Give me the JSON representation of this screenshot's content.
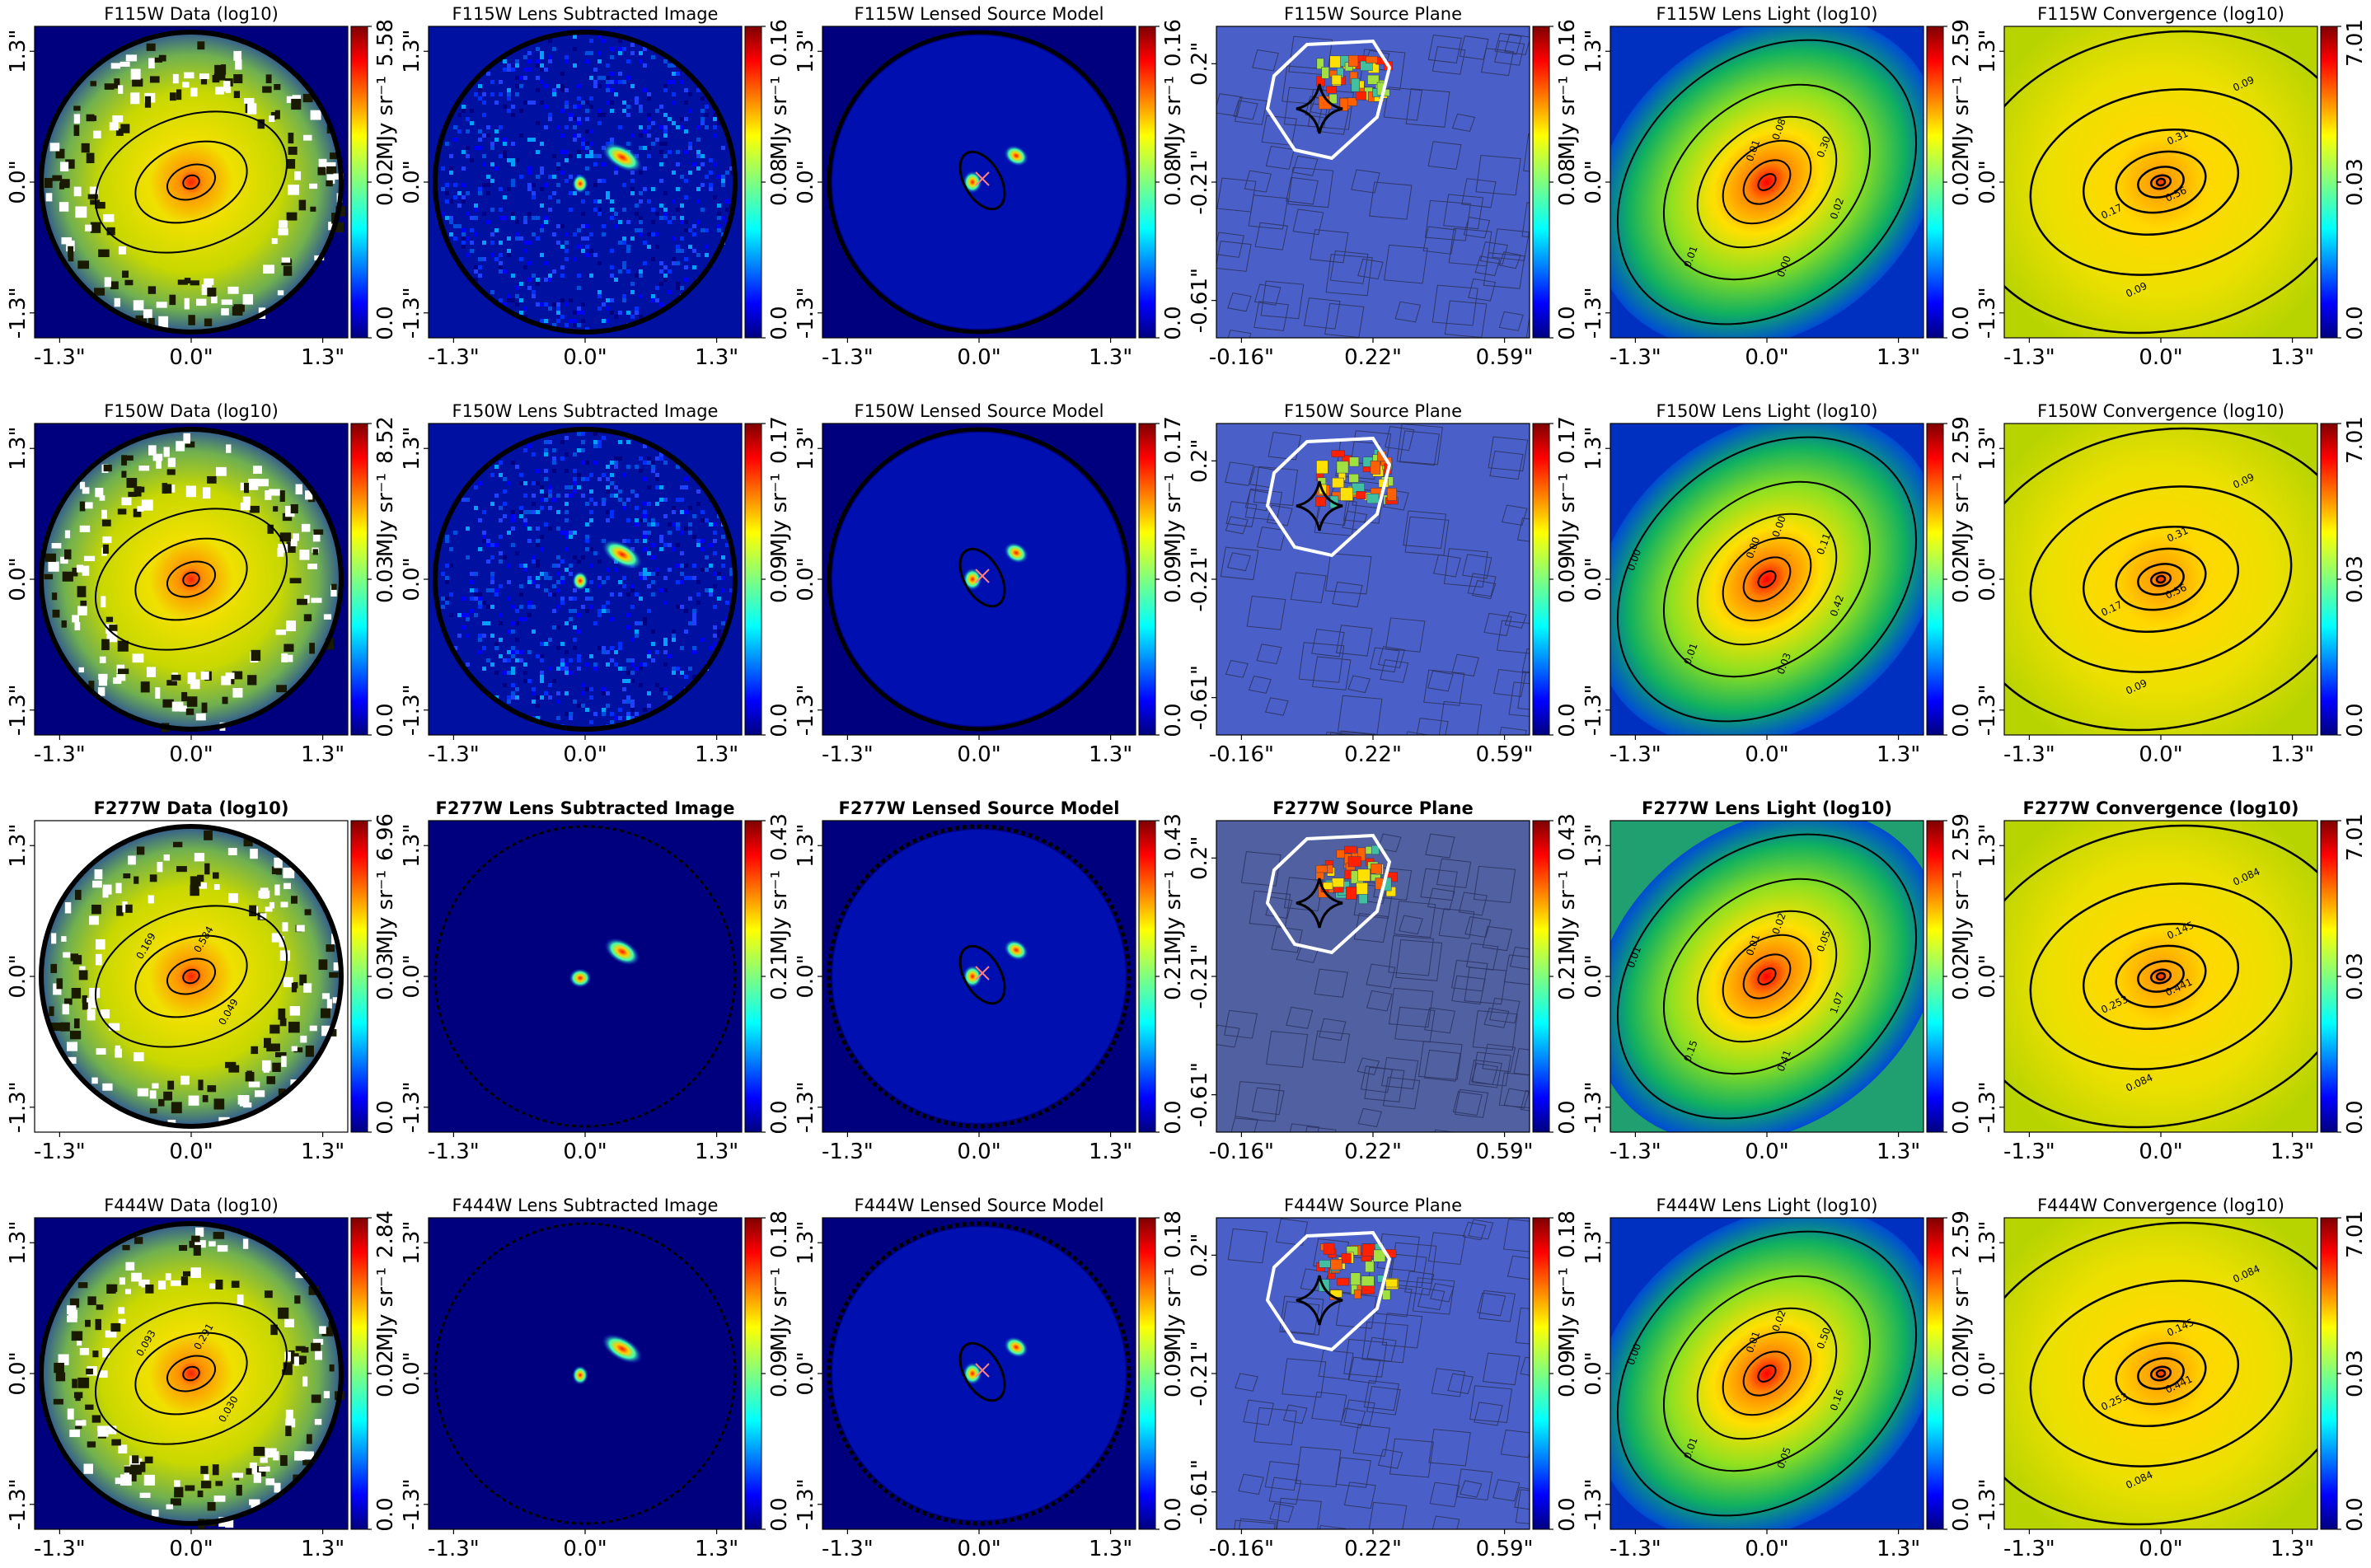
{
  "chart_data": {
    "type": "heatmap",
    "layout": "4 rows x 6 columns grid of lens-modelling image panels",
    "colormap": "jet",
    "columns": [
      "Data (log10)",
      "Lens Subtracted Image",
      "Lensed Source Model",
      "Source Plane",
      "Lens Light (log10)",
      "Convergence (log10)"
    ],
    "image_ticks": [
      "-1.3\"",
      "0.0\"",
      "1.3\""
    ],
    "source_ticks_x": [
      "-0.16\"",
      "0.22\"",
      "0.59\""
    ],
    "source_ticks_y": [
      "0.2\"",
      "-0.21\"",
      "-0.61\""
    ],
    "rows": [
      {
        "filter": "F115W",
        "bold": false,
        "panels": [
          {
            "kind": "data",
            "title": "F115W Data (log10)",
            "cbar_ticks": [
              "0.0",
              "0.02",
              "5.58"
            ],
            "cbar_label": "MJy sr⁻¹",
            "contour_labels": []
          },
          {
            "kind": "residual",
            "title": "F115W Lens Subtracted Image",
            "cbar_ticks": [
              "0.0",
              "0.08",
              "0.16"
            ],
            "cbar_label": "MJy sr⁻¹"
          },
          {
            "kind": "model",
            "title": "F115W Lensed Source Model",
            "cbar_ticks": [
              "0.0",
              "0.08",
              "0.16"
            ],
            "cbar_label": "MJy sr⁻¹"
          },
          {
            "kind": "source",
            "title": "F115W Source Plane",
            "cbar_ticks": [
              "0.0",
              "0.08",
              "0.16"
            ],
            "cbar_label": "MJy sr⁻¹"
          },
          {
            "kind": "light",
            "title": "F115W Lens Light (log10)",
            "cbar_ticks": [
              "0.0",
              "0.02",
              "2.59"
            ],
            "cbar_label": "MJy sr⁻¹",
            "contour_labels": [
              "0.01",
              "0.08",
              "0.30",
              "0.02",
              "0.00",
              "0.01"
            ]
          },
          {
            "kind": "convergence",
            "title": "F115W Convergence (log10)",
            "cbar_ticks": [
              "0.0",
              "0.03",
              "7.01"
            ],
            "cbar_label": "",
            "contour_labels": [
              "0.09",
              "0.31",
              "0.56",
              "0.17",
              "0.09"
            ]
          }
        ]
      },
      {
        "filter": "F150W",
        "bold": false,
        "panels": [
          {
            "kind": "data",
            "title": "F150W Data (log10)",
            "cbar_ticks": [
              "0.0",
              "0.03",
              "8.52"
            ],
            "cbar_label": "MJy sr⁻¹",
            "contour_labels": []
          },
          {
            "kind": "residual",
            "title": "F150W Lens Subtracted Image",
            "cbar_ticks": [
              "0.0",
              "0.09",
              "0.17"
            ],
            "cbar_label": "MJy sr⁻¹"
          },
          {
            "kind": "model",
            "title": "F150W Lensed Source Model",
            "cbar_ticks": [
              "0.0",
              "0.09",
              "0.17"
            ],
            "cbar_label": "MJy sr⁻¹"
          },
          {
            "kind": "source",
            "title": "F150W Source Plane",
            "cbar_ticks": [
              "0.0",
              "0.09",
              "0.17"
            ],
            "cbar_label": "MJy sr⁻¹"
          },
          {
            "kind": "light",
            "title": "F150W Lens Light (log10)",
            "cbar_ticks": [
              "0.0",
              "0.02",
              "2.59"
            ],
            "cbar_label": "MJy sr⁻¹",
            "contour_labels": [
              "0.00",
              "0.00",
              "0.11",
              "0.42",
              "0.03",
              "0.01",
              "0.00"
            ]
          },
          {
            "kind": "convergence",
            "title": "F150W Convergence (log10)",
            "cbar_ticks": [
              "0.0",
              "0.03",
              "7.01"
            ],
            "cbar_label": "",
            "contour_labels": [
              "0.09",
              "0.31",
              "0.56",
              "0.17",
              "0.09"
            ]
          }
        ]
      },
      {
        "filter": "F277W",
        "bold": true,
        "panels": [
          {
            "kind": "data",
            "title": "F277W Data (log10)",
            "cbar_ticks": [
              "0.0",
              "0.03",
              "6.96"
            ],
            "cbar_label": "MJy sr⁻¹",
            "contour_labels": [
              "0.169",
              "0.584",
              "0.049"
            ]
          },
          {
            "kind": "residual",
            "title": "F277W Lens Subtracted Image",
            "cbar_ticks": [
              "0.0",
              "0.21",
              "0.43"
            ],
            "cbar_label": "MJy sr⁻¹"
          },
          {
            "kind": "model",
            "title": "F277W Lensed Source Model",
            "cbar_ticks": [
              "0.0",
              "0.21",
              "0.43"
            ],
            "cbar_label": "MJy sr⁻¹"
          },
          {
            "kind": "source",
            "title": "F277W Source Plane",
            "cbar_ticks": [
              "0.0",
              "0.21",
              "0.43"
            ],
            "cbar_label": "MJy sr⁻¹"
          },
          {
            "kind": "light",
            "title": "F277W Lens Light (log10)",
            "cbar_ticks": [
              "0.0",
              "0.02",
              "2.59"
            ],
            "cbar_label": "MJy sr⁻¹",
            "contour_labels": [
              "0.01",
              "0.02",
              "0.05",
              "1.07",
              "0.41",
              "0.15",
              "0.01"
            ]
          },
          {
            "kind": "convergence",
            "title": "F277W Convergence (log10)",
            "cbar_ticks": [
              "0.0",
              "0.03",
              "7.01"
            ],
            "cbar_label": "",
            "contour_labels": [
              "0.084",
              "0.145",
              "0.441",
              "0.253",
              "0.084"
            ]
          }
        ]
      },
      {
        "filter": "F444W",
        "bold": false,
        "panels": [
          {
            "kind": "data",
            "title": "F444W Data (log10)",
            "cbar_ticks": [
              "0.0",
              "0.02",
              "2.84"
            ],
            "cbar_label": "MJy sr⁻¹",
            "contour_labels": [
              "0.093",
              "0.291",
              "0.030"
            ]
          },
          {
            "kind": "residual",
            "title": "F444W Lens Subtracted Image",
            "cbar_ticks": [
              "0.0",
              "0.09",
              "0.18"
            ],
            "cbar_label": "MJy sr⁻¹"
          },
          {
            "kind": "model",
            "title": "F444W Lensed Source Model",
            "cbar_ticks": [
              "0.0",
              "0.09",
              "0.18"
            ],
            "cbar_label": "MJy sr⁻¹"
          },
          {
            "kind": "source",
            "title": "F444W Source Plane",
            "cbar_ticks": [
              "0.0",
              "0.09",
              "0.18"
            ],
            "cbar_label": "MJy sr⁻¹"
          },
          {
            "kind": "light",
            "title": "F444W Lens Light (log10)",
            "cbar_ticks": [
              "0.0",
              "0.02",
              "2.59"
            ],
            "cbar_label": "MJy sr⁻¹",
            "contour_labels": [
              "0.01",
              "0.02",
              "0.50",
              "0.16",
              "0.05",
              "0.01",
              "0.00"
            ]
          },
          {
            "kind": "convergence",
            "title": "F444W Convergence (log10)",
            "cbar_ticks": [
              "0.0",
              "0.03",
              "7.01"
            ],
            "cbar_label": "",
            "contour_labels": [
              "0.084",
              "0.145",
              "0.441",
              "0.253",
              "0.084"
            ]
          }
        ]
      }
    ]
  }
}
